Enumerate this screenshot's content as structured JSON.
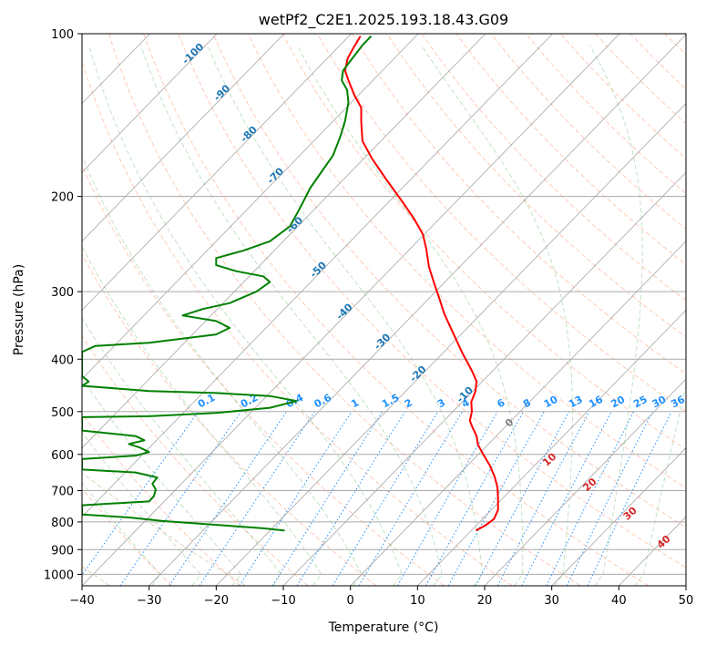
{
  "chart_data": {
    "type": "line",
    "title": "wetPf2_C2E1.2025.193.18.43.G09",
    "xlabel": "Temperature (°C)",
    "ylabel": "Pressure (hPa)",
    "xlim": [
      -40,
      50
    ],
    "ylim": [
      1050,
      100
    ],
    "y_scale": "log",
    "grid": true,
    "x_ticks": [
      -40,
      -30,
      -20,
      -10,
      0,
      10,
      20,
      30,
      40,
      50
    ],
    "y_ticks": [
      1000,
      900,
      800,
      700,
      600,
      500,
      400,
      300,
      200,
      100
    ],
    "series": [
      {
        "color": "#ff0000",
        "points": [
          [
            18.7,
            830
          ],
          [
            20.1,
            812
          ],
          [
            21.4,
            790
          ],
          [
            22.0,
            760
          ],
          [
            22.0,
            720
          ],
          [
            21.9,
            690
          ],
          [
            21.5,
            660
          ],
          [
            20.8,
            630
          ],
          [
            19.8,
            600
          ],
          [
            19.0,
            575
          ],
          [
            18.8,
            555
          ],
          [
            18.2,
            535
          ],
          [
            17.8,
            520
          ],
          [
            18.1,
            500
          ],
          [
            18.0,
            480
          ],
          [
            18.6,
            460
          ],
          [
            18.8,
            440
          ],
          [
            18.1,
            420
          ],
          [
            16.7,
            390
          ],
          [
            15.4,
            360
          ],
          [
            14.0,
            330
          ],
          [
            13.3,
            310
          ],
          [
            12.5,
            290
          ],
          [
            11.7,
            270
          ],
          [
            11.3,
            250
          ],
          [
            10.8,
            235
          ],
          [
            9.5,
            220
          ],
          [
            7.8,
            205
          ],
          [
            5.2,
            185
          ],
          [
            3.2,
            170
          ],
          [
            1.8,
            158
          ],
          [
            1.6,
            145
          ],
          [
            1.6,
            137
          ],
          [
            0.6,
            130
          ],
          [
            -0.3,
            122
          ],
          [
            -0.8,
            117
          ],
          [
            -0.4,
            111
          ],
          [
            0.5,
            106
          ],
          [
            1.5,
            101
          ]
        ]
      },
      {
        "color": "#008000",
        "points": [
          [
            -9.8,
            830
          ],
          [
            -13.0,
            822
          ],
          [
            -20.0,
            810
          ],
          [
            -28.0,
            797
          ],
          [
            -33.0,
            785
          ],
          [
            -40.0,
            775
          ],
          [
            -40.0,
            745
          ],
          [
            -30.0,
            733
          ],
          [
            -29.3,
            717
          ],
          [
            -29.0,
            697
          ],
          [
            -29.5,
            680
          ],
          [
            -28.8,
            662
          ],
          [
            -32.0,
            648
          ],
          [
            -40.0,
            640
          ],
          [
            -40.0,
            612
          ],
          [
            -32.0,
            603
          ],
          [
            -30.0,
            594
          ],
          [
            -31.5,
            582
          ],
          [
            -33.0,
            574
          ],
          [
            -30.7,
            565
          ],
          [
            -32.0,
            555
          ],
          [
            -40.0,
            542
          ],
          [
            -40.0,
            512
          ],
          [
            -30.0,
            510
          ],
          [
            -20.0,
            503
          ],
          [
            -12.0,
            492
          ],
          [
            -8.0,
            478
          ],
          [
            -12.0,
            468
          ],
          [
            -20.0,
            462
          ],
          [
            -30.0,
            458
          ],
          [
            -40.0,
            448
          ],
          [
            -39.0,
            440
          ],
          [
            -40.0,
            430
          ],
          [
            -40.0,
            388
          ],
          [
            -38.0,
            378
          ],
          [
            -30.0,
            373
          ],
          [
            -20.0,
            360
          ],
          [
            -18.0,
            350
          ],
          [
            -20.0,
            340
          ],
          [
            -25.0,
            332
          ],
          [
            -22.0,
            323
          ],
          [
            -18.0,
            315
          ],
          [
            -14.0,
            300
          ],
          [
            -12.0,
            288
          ],
          [
            -13.0,
            281
          ],
          [
            -17.0,
            275
          ],
          [
            -20.0,
            268
          ],
          [
            -20.0,
            260
          ],
          [
            -16.0,
            252
          ],
          [
            -12.0,
            242
          ],
          [
            -9.0,
            227
          ],
          [
            -7.5,
            210
          ],
          [
            -6.0,
            193
          ],
          [
            -4.3,
            180
          ],
          [
            -2.6,
            168
          ],
          [
            -1.5,
            155
          ],
          [
            -0.8,
            145
          ],
          [
            -0.3,
            134
          ],
          [
            -0.5,
            127
          ],
          [
            -1.3,
            122
          ],
          [
            -1.1,
            117
          ],
          [
            0.3,
            111
          ],
          [
            1.8,
            105
          ],
          [
            3.1,
            101
          ]
        ]
      }
    ],
    "isotherm_labels": [
      "-100",
      "-90",
      "-80",
      "-70",
      "-60",
      "-50",
      "-40",
      "-30",
      "-20",
      "-10"
    ],
    "mixing_ratio_labels": [
      "0.1",
      "0.2",
      "0.4",
      "0.6",
      "1",
      "1.5",
      "2",
      "3",
      "4",
      "6",
      "8",
      "10",
      "13",
      "16",
      "20",
      "25",
      "30",
      "36"
    ],
    "dry_adiabat_labels": [
      "0",
      "10",
      "20",
      "30",
      "40"
    ],
    "colors": {
      "temperature": "#ff0000",
      "dewpoint": "#008000",
      "isotherm_label": "#1f77b4",
      "mixing_ratio": "#1e90ff",
      "dry_adiabat_label": "#d62728",
      "zero_label": "#808080"
    }
  }
}
